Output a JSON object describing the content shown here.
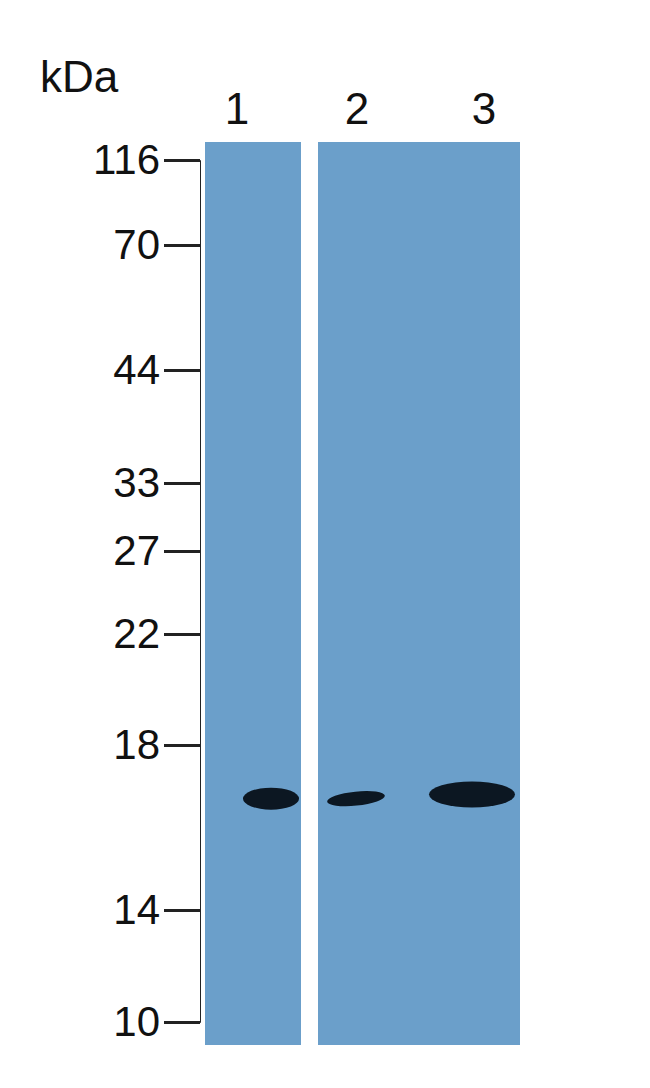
{
  "chart_data": {
    "type": "blot",
    "y_label": "kDa",
    "categories": [
      "1",
      "2",
      "3"
    ],
    "values": [
      16.7,
      16.7,
      16.8
    ],
    "ylim": [
      10,
      116
    ],
    "yticks": [
      10,
      14,
      18,
      22,
      27,
      33,
      44,
      70,
      116
    ]
  }
}
